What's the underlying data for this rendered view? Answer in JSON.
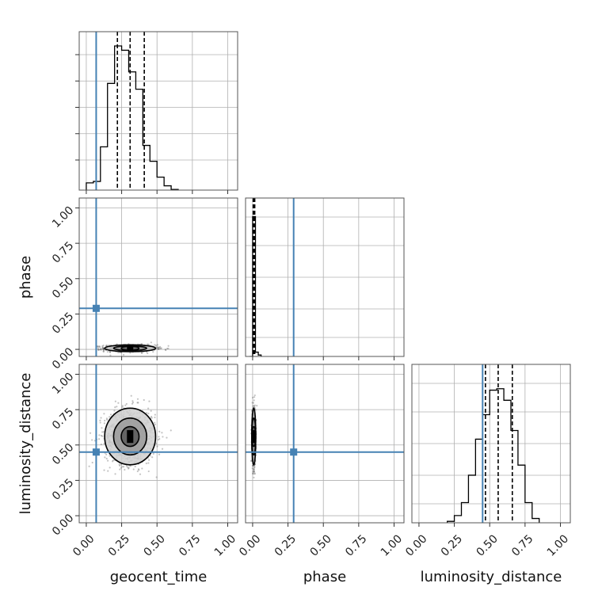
{
  "chart_data": {
    "type": "corner",
    "parameters": [
      "geocent_time",
      "phase",
      "luminosity_distance"
    ],
    "axis_labels": {
      "bottom": [
        "geocent_time",
        "phase",
        "luminosity_distance"
      ],
      "left": [
        "phase",
        "luminosity_distance"
      ]
    },
    "tick_values": [
      0.0,
      0.25,
      0.5,
      0.75,
      1.0
    ],
    "tick_labels": [
      "0.00",
      "0.25",
      "0.50",
      "0.75",
      "1.00"
    ],
    "range": [
      -0.05,
      1.07
    ],
    "grid": true,
    "injected": {
      "geocent_time": 0.07,
      "phase": 0.29,
      "luminosity_distance": 0.45
    },
    "colors": {
      "truth": "#4682b4",
      "hist": "#000000",
      "grid": "#b0b0b0",
      "scatter": "#555555"
    },
    "histograms": {
      "geocent_time": {
        "bins": [
          [
            0.0,
            0.05,
            0.05
          ],
          [
            0.05,
            0.1,
            0.06
          ],
          [
            0.1,
            0.15,
            0.3
          ],
          [
            0.15,
            0.2,
            0.74
          ],
          [
            0.2,
            0.25,
            1.0
          ],
          [
            0.25,
            0.3,
            0.97
          ],
          [
            0.3,
            0.35,
            0.82
          ],
          [
            0.35,
            0.4,
            0.7
          ],
          [
            0.4,
            0.45,
            0.31
          ],
          [
            0.45,
            0.5,
            0.2
          ],
          [
            0.5,
            0.55,
            0.09
          ],
          [
            0.55,
            0.6,
            0.03
          ],
          [
            0.6,
            0.65,
            0.005
          ]
        ],
        "quantiles": [
          0.22,
          0.31,
          0.41
        ]
      },
      "phase": {
        "bins": [
          [
            -0.02,
            0.0,
            0.0
          ],
          [
            0.0,
            0.02,
            0.97
          ],
          [
            0.02,
            0.04,
            0.03
          ],
          [
            0.04,
            0.06,
            0.01
          ]
        ],
        "quantiles": [
          0.004,
          0.009,
          0.015
        ]
      },
      "luminosity_distance": {
        "bins": [
          [
            0.2,
            0.25,
            0.01
          ],
          [
            0.25,
            0.3,
            0.05
          ],
          [
            0.3,
            0.35,
            0.14
          ],
          [
            0.35,
            0.4,
            0.33
          ],
          [
            0.4,
            0.45,
            0.58
          ],
          [
            0.45,
            0.5,
            0.75
          ],
          [
            0.5,
            0.55,
            0.92
          ],
          [
            0.55,
            0.6,
            0.93
          ],
          [
            0.6,
            0.65,
            0.85
          ],
          [
            0.65,
            0.7,
            0.64
          ],
          [
            0.7,
            0.75,
            0.4
          ],
          [
            0.75,
            0.8,
            0.14
          ],
          [
            0.8,
            0.85,
            0.03
          ]
        ],
        "quantiles": [
          0.47,
          0.56,
          0.66
        ]
      }
    },
    "posterior_2d": {
      "geocent_time_vs_phase": {
        "center": [
          0.31,
          0.008
        ],
        "spread": [
          0.09,
          0.012
        ]
      },
      "geocent_time_vs_luminosity_distance": {
        "center": [
          0.31,
          0.56
        ],
        "spread": [
          0.09,
          0.1
        ]
      },
      "phase_vs_luminosity_distance": {
        "center": [
          0.008,
          0.56
        ],
        "spread": [
          0.006,
          0.1
        ]
      }
    }
  }
}
